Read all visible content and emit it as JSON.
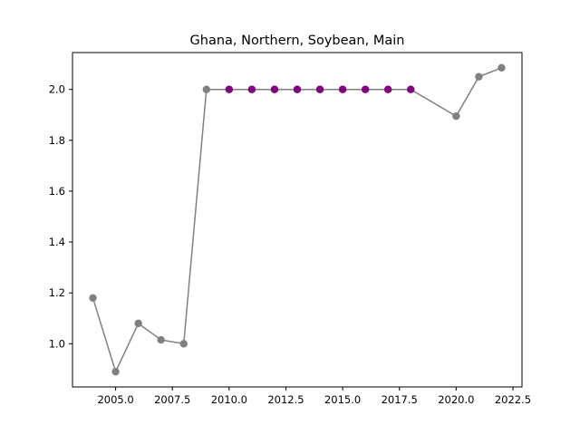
{
  "chart_data": {
    "type": "line",
    "title": "Ghana, Northern, Soybean, Main",
    "xlabel": "",
    "ylabel": "",
    "xlim": [
      2003.1,
      2022.9
    ],
    "ylim": [
      0.83,
      2.145
    ],
    "x_ticks": [
      2005.0,
      2007.5,
      2010.0,
      2012.5,
      2015.0,
      2017.5,
      2020.0,
      2022.5
    ],
    "x_tick_labels": [
      "2005.0",
      "2007.5",
      "2010.0",
      "2012.5",
      "2015.0",
      "2017.5",
      "2020.0",
      "2022.5"
    ],
    "y_ticks": [
      1.0,
      1.2,
      1.4,
      1.6,
      1.8,
      2.0
    ],
    "y_tick_labels": [
      "1.0",
      "1.2",
      "1.4",
      "1.6",
      "1.8",
      "2.0"
    ],
    "grid": false,
    "legend": "none",
    "series": [
      {
        "color": "#808080",
        "x": [
          2004,
          2005,
          2006,
          2007,
          2008,
          2009,
          2010,
          2011,
          2012,
          2013,
          2014,
          2015,
          2016,
          2017,
          2018,
          2020,
          2021,
          2022
        ],
        "values": [
          1.18,
          0.89,
          1.08,
          1.015,
          1.0,
          2.0,
          2.0,
          2.0,
          2.0,
          2.0,
          2.0,
          2.0,
          2.0,
          2.0,
          2.0,
          1.895,
          2.05,
          2.085
        ]
      }
    ],
    "highlighted_points": {
      "color": "#800080",
      "x": [
        2010,
        2011,
        2012,
        2013,
        2014,
        2015,
        2016,
        2017,
        2018
      ],
      "values": [
        2.0,
        2.0,
        2.0,
        2.0,
        2.0,
        2.0,
        2.0,
        2.0,
        2.0
      ]
    }
  }
}
